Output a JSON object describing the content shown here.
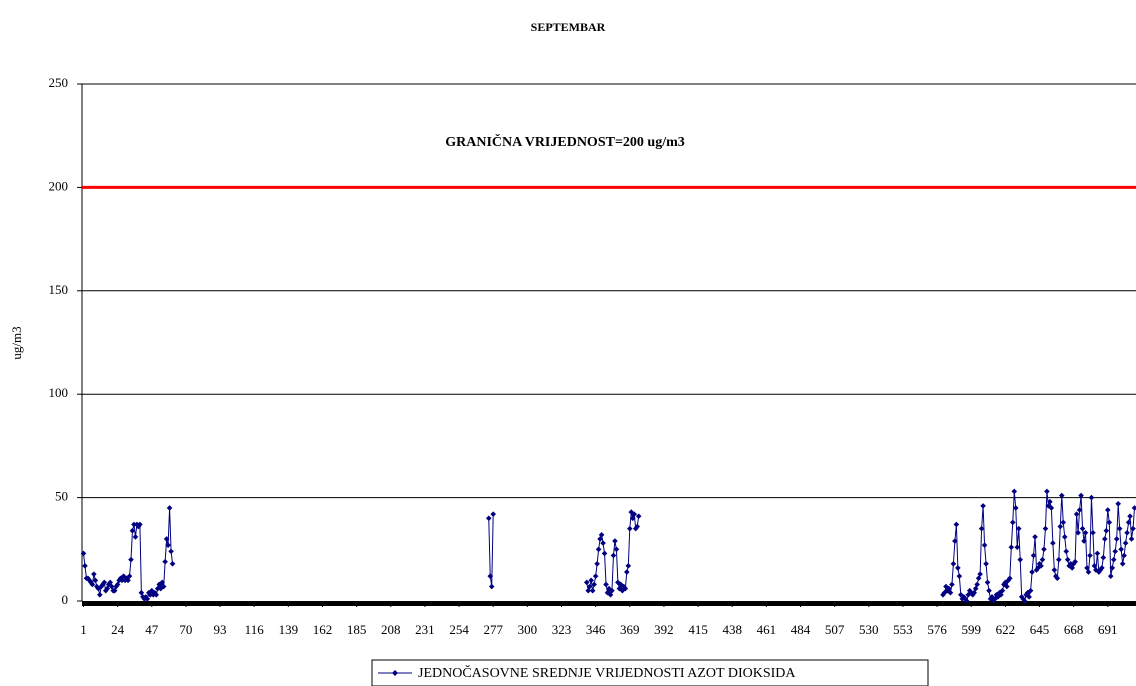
{
  "chart_data": {
    "type": "line",
    "title": "SEPTEMBAR",
    "ylabel": "ug/m3",
    "xlim": [
      0,
      710
    ],
    "ylim": [
      0,
      250
    ],
    "yticks": [
      0,
      50,
      100,
      150,
      200,
      250
    ],
    "xticks": [
      1,
      24,
      47,
      70,
      93,
      116,
      139,
      162,
      185,
      208,
      231,
      254,
      277,
      300,
      323,
      346,
      369,
      392,
      415,
      438,
      461,
      484,
      507,
      530,
      553,
      576,
      599,
      622,
      645,
      668,
      691
    ],
    "grid": true,
    "threshold": {
      "value": 200,
      "label": "GRANIČNA VRIJEDNOST=200 ug/m3",
      "color": "#ff0000"
    },
    "legend": "bottom",
    "x": [
      1,
      2,
      3,
      4,
      5,
      6,
      7,
      8,
      9,
      10,
      11,
      12,
      13,
      14,
      15,
      16,
      17,
      18,
      19,
      20,
      21,
      22,
      23,
      24,
      25,
      26,
      27,
      28,
      29,
      30,
      31,
      32,
      33,
      34,
      35,
      36,
      37,
      38,
      39,
      40,
      41,
      42,
      43,
      44,
      45,
      46,
      47,
      48,
      49,
      50,
      51,
      52,
      53,
      54,
      55,
      56,
      57,
      58,
      59,
      60,
      61,
      62,
      274,
      275,
      276,
      277,
      278,
      340,
      341,
      342,
      343,
      344,
      345,
      346,
      347,
      348,
      349,
      350,
      351,
      352,
      353,
      354,
      355,
      356,
      357,
      358,
      359,
      360,
      361,
      362,
      363,
      364,
      365,
      366,
      367,
      368,
      369,
      370,
      371,
      372,
      373,
      374,
      375,
      376,
      580,
      581,
      582,
      583,
      584,
      585,
      586,
      587,
      588,
      589,
      590,
      591,
      592,
      593,
      594,
      595,
      596,
      597,
      598,
      599,
      600,
      601,
      602,
      603,
      604,
      605,
      606,
      607,
      608,
      609,
      610,
      611,
      612,
      613,
      614,
      615,
      616,
      617,
      618,
      619,
      620,
      621,
      622,
      623,
      624,
      625,
      626,
      627,
      628,
      629,
      630,
      631,
      632,
      633,
      634,
      635,
      636,
      637,
      638,
      639,
      640,
      641,
      642,
      643,
      644,
      645,
      646,
      647,
      648,
      649,
      650,
      651,
      652,
      653,
      654,
      655,
      656,
      657,
      658,
      659,
      660,
      661,
      662,
      663,
      664,
      665,
      666,
      667,
      668,
      669,
      670,
      671,
      672,
      673,
      674,
      675,
      676,
      677,
      678,
      679,
      680,
      681,
      682,
      683,
      684,
      685,
      686,
      687,
      688,
      689,
      690,
      691,
      692,
      693,
      694,
      695,
      696,
      697,
      698,
      699,
      700,
      701,
      702,
      703,
      704,
      705,
      706,
      707,
      708,
      709
    ],
    "series": [
      {
        "name": "JEDNOČASOVNE SREDNJE VRIJEDNOSTI AZOT DIOKSIDA",
        "color": "#000080",
        "values": [
          23,
          17,
          11,
          11,
          10,
          9,
          8,
          13,
          10,
          7,
          6,
          3,
          7,
          8,
          9,
          5,
          6,
          8,
          9,
          7,
          5,
          5,
          7,
          8,
          10,
          11,
          10,
          12,
          10,
          11,
          10,
          12,
          20,
          34,
          37,
          31,
          37,
          36,
          37,
          4,
          2,
          1,
          2,
          1,
          4,
          3,
          5,
          3,
          4,
          3,
          6,
          8,
          6,
          9,
          7,
          19,
          30,
          27,
          45,
          24,
          18,
          null,
          40,
          12,
          7,
          42,
          null,
          9,
          5,
          7,
          10,
          5,
          8,
          12,
          18,
          25,
          30,
          32,
          28,
          23,
          8,
          4,
          6,
          3,
          5,
          22,
          29,
          25,
          9,
          6,
          8,
          5,
          7,
          6,
          14,
          17,
          35,
          43,
          40,
          42,
          35,
          36,
          41,
          null,
          3,
          4,
          7,
          5,
          6,
          4,
          8,
          18,
          29,
          37,
          16,
          12,
          3,
          1,
          2,
          1,
          0,
          3,
          5,
          4,
          3,
          4,
          6,
          8,
          11,
          13,
          35,
          46,
          27,
          18,
          9,
          5,
          1,
          2,
          0,
          1,
          3,
          2,
          4,
          3,
          5,
          8,
          9,
          7,
          10,
          11,
          26,
          38,
          53,
          45,
          26,
          35,
          20,
          2,
          1,
          0,
          3,
          4,
          2,
          5,
          14,
          22,
          31,
          15,
          16,
          18,
          17,
          20,
          25,
          35,
          53,
          46,
          48,
          45,
          28,
          15,
          12,
          11,
          20,
          36,
          51,
          38,
          31,
          24,
          20,
          17,
          18,
          16,
          18,
          19,
          42,
          33,
          44,
          51,
          35,
          29,
          33,
          16,
          14,
          22,
          50,
          33,
          17,
          15,
          23,
          14,
          15,
          16,
          21,
          30,
          34,
          44,
          38,
          12,
          16,
          20,
          24,
          30,
          47,
          35,
          25,
          18,
          22,
          28,
          33,
          38,
          41,
          30,
          35,
          45
        ]
      }
    ]
  }
}
